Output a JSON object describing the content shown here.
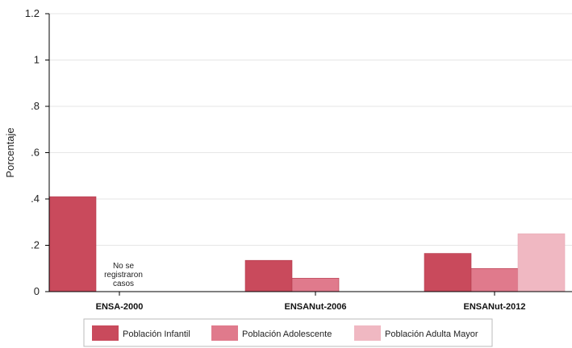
{
  "chart_data": {
    "type": "bar",
    "ylabel": "Porcentaje",
    "ylim": [
      0,
      1.2
    ],
    "yticks": [
      {
        "value": 0,
        "label": "0"
      },
      {
        "value": 0.2,
        "label": ".2"
      },
      {
        "value": 0.4,
        "label": ".4"
      },
      {
        "value": 0.6,
        "label": ".6"
      },
      {
        "value": 0.8,
        "label": ".8"
      },
      {
        "value": 1,
        "label": "1"
      },
      {
        "value": 1.2,
        "label": "1.2"
      }
    ],
    "grid": true,
    "legend_position": "bottom",
    "categories": [
      "ENSA-2000",
      "ENSANut-2006",
      "ENSANut-2012"
    ],
    "series": [
      {
        "name": "Población Infantil",
        "color": "#c94a5c",
        "values": [
          0.41,
          0.135,
          0.165
        ]
      },
      {
        "name": "Población Adolescente",
        "color": "#e07a8c",
        "values": [
          null,
          0.058,
          0.1
        ]
      },
      {
        "name": "Población Adulta Mayor",
        "color": "#f0b8c2",
        "values": [
          null,
          null,
          0.25
        ]
      }
    ],
    "annotation": {
      "lines": [
        "No se",
        "registraron",
        "casos"
      ],
      "category": "ENSA-2000"
    }
  }
}
